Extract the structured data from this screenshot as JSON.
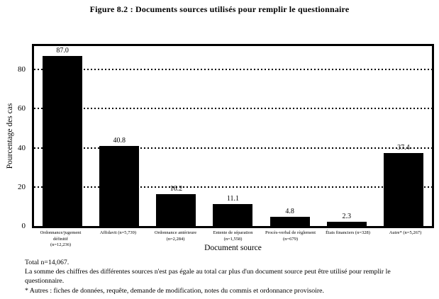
{
  "title": "Figure 8.2 : Documents sources utilisés pour remplir le questionnaire",
  "chart_data": {
    "type": "bar",
    "title": "Figure 8.2 : Documents sources utilisés pour remplir le questionnaire",
    "xlabel": "Document source",
    "ylabel": "Pourcentage des cas",
    "ylim": [
      0,
      92
    ],
    "yticks": [
      "0",
      "20",
      "40",
      "60",
      "80"
    ],
    "ytick_values": [
      0,
      20,
      40,
      60,
      80
    ],
    "gridline_values": [
      20,
      40,
      60,
      80
    ],
    "grid_style": "dotted",
    "bar_color": "#000000",
    "background_color": "#ffffff",
    "categories": [
      [
        "Ordonnance/jugement définitif",
        "(n=12,236)"
      ],
      [
        "Affidavit (n=5,739)"
      ],
      [
        "Ordonnance antérieure",
        "(n=2,284)"
      ],
      [
        "Entente de séparation",
        "(n=1,558)"
      ],
      [
        "Procès-verbal de règlement",
        "(n=679)"
      ],
      [
        "États financiers (n=328)"
      ],
      [
        "Autre* (n=5,267)"
      ]
    ],
    "values": [
      87.0,
      40.8,
      16.2,
      11.1,
      4.8,
      2.3,
      37.4
    ],
    "value_labels": [
      "87.0",
      "40.8",
      "16.2",
      "11.1",
      "4.8",
      "2.3",
      "37.4"
    ]
  },
  "notes": {
    "total": "Total n=14,067.",
    "sum_note": "La somme des chiffres des différentes sources n'est pas égale au total car plus d'un document source peut être utilisé pour remplir le questionnaire.",
    "autres_note": "* Autres : fiches de données, requête, demande de modification, notes du commis et ordonnance provisoire."
  }
}
